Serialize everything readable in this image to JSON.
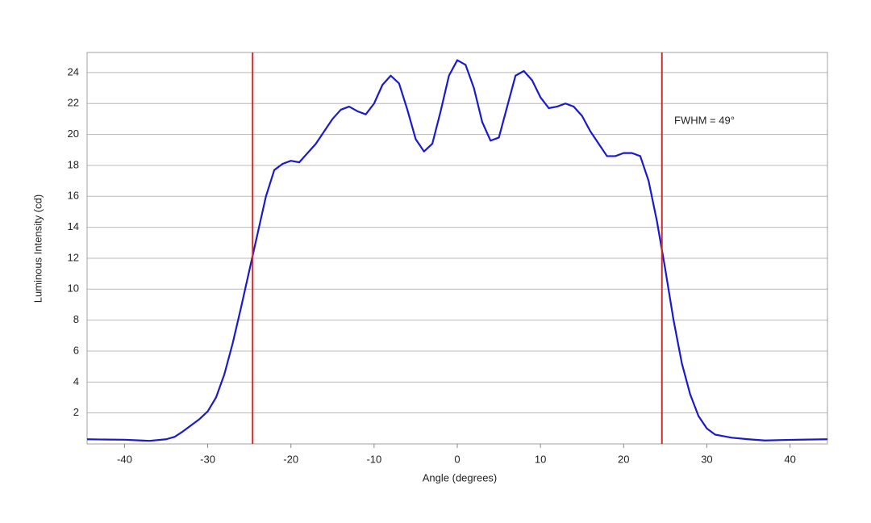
{
  "chart_data": {
    "type": "line",
    "x_label": "Angle (degrees)",
    "y_label": "Luminous Intensity (cd)",
    "annotation": "FWHM = 49°",
    "x": [
      -44.5,
      -42,
      -40,
      -38,
      -37,
      -35,
      -34,
      -33,
      -32,
      -31,
      -30,
      -29,
      -28,
      -27,
      -26,
      -25,
      -24,
      -23,
      -22,
      -21,
      -20,
      -19,
      -18,
      -17,
      -16,
      -15,
      -14,
      -13,
      -12,
      -11,
      -10,
      -9,
      -8,
      -7,
      -6,
      -5,
      -4,
      -3,
      -2,
      -1,
      0,
      1,
      2,
      3,
      4,
      5,
      6,
      7,
      8,
      9,
      10,
      11,
      12,
      13,
      14,
      15,
      16,
      17,
      18,
      19,
      20,
      21,
      22,
      23,
      24,
      25,
      26,
      27,
      28,
      29,
      30,
      31,
      32,
      33,
      35,
      37,
      39,
      42,
      44.5
    ],
    "series": [
      {
        "color": "#1a1acc",
        "values": [
          0.3,
          0.28,
          0.27,
          0.22,
          0.2,
          0.3,
          0.45,
          0.8,
          1.2,
          1.6,
          2.1,
          3.0,
          4.5,
          6.5,
          8.8,
          11.2,
          13.6,
          16.0,
          17.7,
          18.1,
          18.3,
          18.2,
          18.8,
          19.4,
          20.2,
          21.0,
          21.6,
          21.8,
          21.5,
          21.3,
          22.0,
          23.2,
          23.8,
          23.3,
          21.6,
          19.7,
          18.9,
          19.4,
          21.5,
          23.8,
          24.8,
          24.5,
          23.0,
          20.8,
          19.6,
          19.8,
          21.8,
          23.8,
          24.1,
          23.5,
          22.4,
          21.7,
          21.8,
          22.0,
          21.8,
          21.2,
          20.2,
          19.4,
          18.6,
          18.6,
          18.8,
          18.8,
          18.6,
          17.0,
          14.4,
          11.3,
          8.0,
          5.2,
          3.2,
          1.8,
          1.0,
          0.6,
          0.5,
          0.4,
          0.3,
          0.22,
          0.25,
          0.28,
          0.3
        ]
      }
    ],
    "vlines": [
      -24.6,
      24.6
    ],
    "vline_color": "#cc2a2a",
    "xlim": [
      -44.5,
      44.5
    ],
    "ylim": [
      0,
      25.3
    ],
    "xticks": [
      -40,
      -30,
      -20,
      -10,
      0,
      10,
      20,
      30,
      40
    ],
    "yticks": [
      2,
      4,
      6,
      8,
      10,
      12,
      14,
      16,
      18,
      20,
      22,
      24
    ],
    "grid": true
  }
}
